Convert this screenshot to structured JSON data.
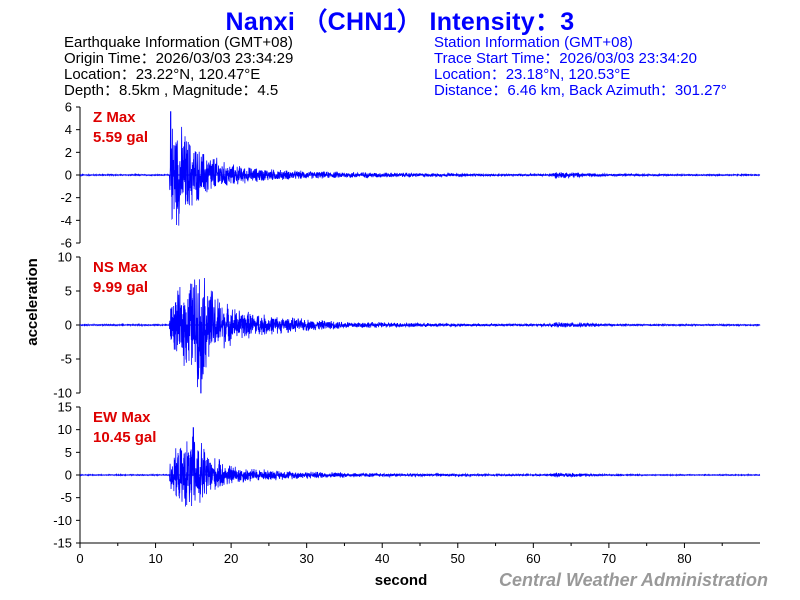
{
  "title": "Nanxi （CHN1） Intensity：3",
  "earthquake_info": {
    "heading": "Earthquake Information  (GMT+08)",
    "origin_time": "Origin Time：2026/03/03 23:34:29",
    "location": "Location：23.22°N, 120.47°E",
    "depth_magnitude": "Depth：8.5km , Magnitude：4.5"
  },
  "station_info": {
    "heading": "Station Information  (GMT+08)",
    "trace_start": "Trace Start Time：2026/03/03 23:34:20",
    "location": "Location：23.18°N, 120.53°E",
    "distance_azimuth": "Distance：6.46 km, Back Azimuth：301.27°"
  },
  "credit": "Central Weather Administration",
  "colors": {
    "trace": "#0000ff",
    "title": "#0000ff",
    "max_label": "#dd0000",
    "station_text": "#0000ff",
    "credit": "#999999"
  },
  "chart_data": {
    "type": "line",
    "xlabel": "second",
    "ylabel": "acceleration",
    "xlim": [
      0,
      90
    ],
    "x_ticks": [
      0,
      10,
      20,
      30,
      40,
      50,
      60,
      70,
      80
    ],
    "grid": false,
    "panels": [
      {
        "name": "Z",
        "max_label": "Z Max",
        "max_value": "5.59 gal",
        "ylim": [
          -6,
          6
        ],
        "y_ticks": [
          6,
          4,
          2,
          0,
          -2,
          -4,
          -6
        ],
        "envelope": [
          [
            0,
            0.06
          ],
          [
            11.8,
            0.06
          ],
          [
            12,
            5.59
          ],
          [
            13,
            5.1
          ],
          [
            14,
            4.2
          ],
          [
            15,
            3.2
          ],
          [
            16,
            2.4
          ],
          [
            17,
            2.2
          ],
          [
            18,
            1.8
          ],
          [
            19,
            1.3
          ],
          [
            20,
            1.1
          ],
          [
            22,
            0.8
          ],
          [
            25,
            0.6
          ],
          [
            28,
            0.45
          ],
          [
            32,
            0.35
          ],
          [
            36,
            0.3
          ],
          [
            40,
            0.25
          ],
          [
            45,
            0.2
          ],
          [
            50,
            0.15
          ],
          [
            55,
            0.1
          ],
          [
            62,
            0.1
          ],
          [
            63,
            0.35
          ],
          [
            65,
            0.3
          ],
          [
            67,
            0.2
          ],
          [
            70,
            0.12
          ],
          [
            80,
            0.08
          ],
          [
            90,
            0.06
          ]
        ]
      },
      {
        "name": "NS",
        "max_label": "NS Max",
        "max_value": "9.99 gal",
        "ylim": [
          -10,
          10
        ],
        "y_ticks": [
          10,
          5,
          0,
          -5,
          -10
        ],
        "envelope": [
          [
            0,
            0.1
          ],
          [
            11.8,
            0.1
          ],
          [
            12,
            3.5
          ],
          [
            13,
            5.5
          ],
          [
            14,
            7.0
          ],
          [
            15,
            8.5
          ],
          [
            16,
            9.99
          ],
          [
            17,
            7.0
          ],
          [
            18,
            5.0
          ],
          [
            19,
            4.0
          ],
          [
            20,
            3.0
          ],
          [
            22,
            2.3
          ],
          [
            25,
            1.6
          ],
          [
            28,
            1.2
          ],
          [
            32,
            0.8
          ],
          [
            36,
            0.55
          ],
          [
            40,
            0.45
          ],
          [
            45,
            0.35
          ],
          [
            50,
            0.25
          ],
          [
            55,
            0.2
          ],
          [
            62,
            0.2
          ],
          [
            63,
            0.45
          ],
          [
            66,
            0.4
          ],
          [
            68,
            0.3
          ],
          [
            70,
            0.15
          ],
          [
            80,
            0.12
          ],
          [
            90,
            0.1
          ]
        ]
      },
      {
        "name": "EW",
        "max_label": "EW Max",
        "max_value": "10.45 gal",
        "ylim": [
          -15,
          15
        ],
        "y_ticks": [
          15,
          10,
          5,
          0,
          -5,
          -10,
          -15
        ],
        "envelope": [
          [
            0,
            0.12
          ],
          [
            11.8,
            0.12
          ],
          [
            12,
            5.0
          ],
          [
            13,
            6.5
          ],
          [
            14,
            8.5
          ],
          [
            15,
            10.45
          ],
          [
            16,
            8.5
          ],
          [
            17,
            6.0
          ],
          [
            18,
            4.0
          ],
          [
            20,
            2.5
          ],
          [
            22,
            1.8
          ],
          [
            25,
            1.3
          ],
          [
            28,
            1.0
          ],
          [
            32,
            0.8
          ],
          [
            36,
            0.6
          ],
          [
            40,
            0.45
          ],
          [
            45,
            0.35
          ],
          [
            50,
            0.3
          ],
          [
            55,
            0.2
          ],
          [
            62,
            0.2
          ],
          [
            63,
            0.6
          ],
          [
            66,
            0.5
          ],
          [
            68,
            0.3
          ],
          [
            70,
            0.15
          ],
          [
            80,
            0.12
          ],
          [
            90,
            0.12
          ]
        ]
      }
    ]
  }
}
